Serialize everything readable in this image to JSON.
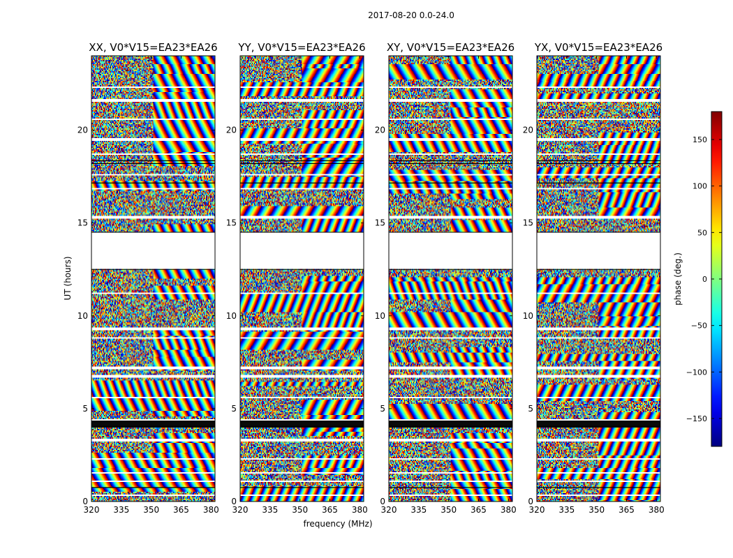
{
  "chart_data": {
    "type": "heatmap",
    "suptitle": "2017-08-20 0.0-24.0",
    "xlabel": "frequency (MHz)",
    "ylabel": "UT (hours)",
    "xlim": [
      320,
      382
    ],
    "ylim": [
      0,
      24
    ],
    "xticks": [
      320,
      335,
      350,
      365,
      380
    ],
    "yticks": [
      0,
      5,
      10,
      15,
      20
    ],
    "panels": [
      {
        "title": "XX, V0*V15=EA23*EA26",
        "stokes": "XX"
      },
      {
        "title": "YY, V0*V15=EA23*EA26",
        "stokes": "YY"
      },
      {
        "title": "XY, V0*V15=EA23*EA26",
        "stokes": "XY"
      },
      {
        "title": "YX, V0*V15=EA23*EA26",
        "stokes": "YX"
      }
    ],
    "gaps_hours": [
      [
        14.5,
        12.5
      ]
    ],
    "colorbar": {
      "label": "phase (deg.)",
      "range": [
        -180,
        180
      ],
      "ticks": [
        150,
        100,
        50,
        0,
        -50,
        -100,
        -150
      ],
      "tick_labels": [
        "150",
        "100",
        "50",
        "0",
        "−50",
        "−100",
        "−150"
      ],
      "colormap": "jet"
    }
  }
}
